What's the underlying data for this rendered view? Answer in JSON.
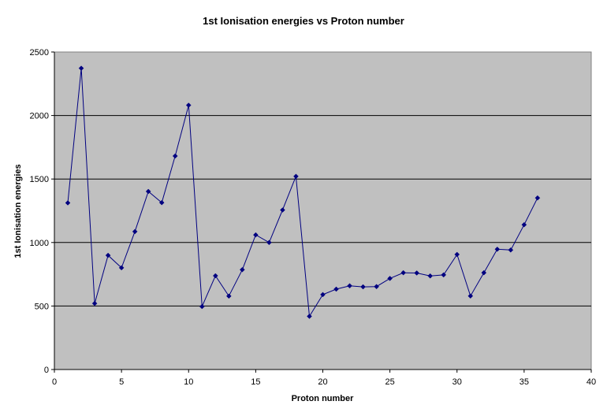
{
  "chart_data": {
    "type": "line",
    "title": "1st Ionisation energies vs Proton number",
    "xlabel": "Proton number",
    "ylabel": "1st Ionisation energies",
    "xlim": [
      0,
      40
    ],
    "ylim": [
      0,
      2500
    ],
    "xticks": [
      0,
      5,
      10,
      15,
      20,
      25,
      30,
      35,
      40
    ],
    "yticks": [
      0,
      500,
      1000,
      1500,
      2000,
      2500
    ],
    "xtick_labels": [
      "0",
      "5",
      "10",
      "15",
      "20",
      "25",
      "30",
      "35",
      "40"
    ],
    "ytick_labels": [
      "0",
      "500",
      "1000",
      "1500",
      "2000",
      "2500"
    ],
    "grid": "horizontal",
    "legend": "none",
    "plot_background": "#c0c0c0",
    "line_color": "#000080",
    "series": [
      {
        "x": [
          1,
          2,
          3,
          4,
          5,
          6,
          7,
          8,
          9,
          10,
          11,
          12,
          13,
          14,
          15,
          16,
          17,
          18,
          19,
          20,
          21,
          22,
          23,
          24,
          25,
          26,
          27,
          28,
          29,
          30,
          31,
          32,
          33,
          34,
          35,
          36
        ],
        "y": [
          1312,
          2372,
          520,
          899,
          801,
          1086,
          1402,
          1314,
          1681,
          2081,
          496,
          738,
          578,
          786,
          1060,
          1000,
          1256,
          1521,
          419,
          590,
          633,
          659,
          651,
          653,
          717,
          762,
          760,
          737,
          745,
          906,
          579,
          762,
          947,
          941,
          1140,
          1351
        ]
      }
    ]
  }
}
